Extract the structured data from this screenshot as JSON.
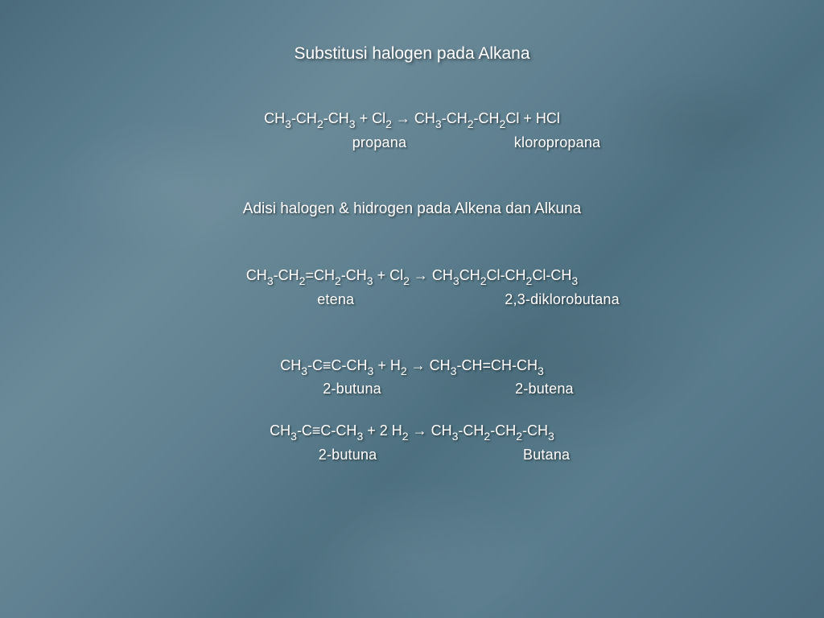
{
  "colors": {
    "text": "#ffffff",
    "shadow": "rgba(0,0,0,0.5)",
    "bg_base": "#5a7d8e"
  },
  "typography": {
    "family": "Trebuchet MS / Comic Sans style",
    "title_fontsize_pt": 16,
    "body_fontsize_pt": 14
  },
  "title": "Substitusi halogen pada Alkana",
  "reaction1": {
    "lhs_1": "CH",
    "lhs_1s": "3",
    "lhs_2": "-CH",
    "lhs_2s": "2",
    "lhs_3": "-CH",
    "lhs_3s": "3",
    "plus": "  +  ",
    "reagent": "Cl",
    "reagent_s": "2",
    "arrow": " → ",
    "rhs_1": "  CH",
    "rhs_1s": "3",
    "rhs_2": "-CH",
    "rhs_2s": "2",
    "rhs_3": "-CH",
    "rhs_3s": "2",
    "rhs_4": "Cl + HCl",
    "label_left": "propana",
    "label_right": "kloropropana"
  },
  "subtitle": "Adisi halogen & hidrogen pada Alkena dan Alkuna",
  "reaction2": {
    "lhs_1": "CH",
    "lhs_1s": "3",
    "lhs_2": "-CH",
    "lhs_2s": "2",
    "lhs_3": "=CH",
    "lhs_3s": "2",
    "lhs_4": "-CH",
    "lhs_4s": "3",
    "plus": " + ",
    "reagent": "Cl",
    "reagent_s": "2",
    "arrow": " → ",
    "rhs_1": "CH",
    "rhs_1s": "3",
    "rhs_2": "CH",
    "rhs_2s": "2",
    "rhs_3": "Cl-CH",
    "rhs_3s": "2",
    "rhs_4": "Cl-CH",
    "rhs_4s": "3",
    "label_left": "etena",
    "label_right": "2,3-diklorobutana"
  },
  "reaction3": {
    "lhs_1": "CH",
    "lhs_1s": "3",
    "lhs_2": "-C≡C-CH",
    "lhs_2s": "3",
    "plus": "  + ",
    "reagent": "H",
    "reagent_s": "2",
    "arrow": "   → ",
    "rhs_1": "CH",
    "rhs_1s": "3",
    "rhs_2": "-CH=CH-CH",
    "rhs_2s": "3",
    "label_left": "2-butuna",
    "label_right": "2-butena"
  },
  "reaction4": {
    "lhs_1": "CH",
    "lhs_1s": "3",
    "lhs_2": "-C≡C-CH",
    "lhs_2s": "3",
    "plus": " + 2 ",
    "reagent": "H",
    "reagent_s": "2",
    "arrow": "  → ",
    "rhs_1": "CH",
    "rhs_1s": "3",
    "rhs_2": "-CH",
    "rhs_2s": "2",
    "rhs_3": "-CH",
    "rhs_3s": "2",
    "rhs_4": "-CH",
    "rhs_4s": "3",
    "label_left": "2-butuna",
    "label_right": "Butana"
  }
}
